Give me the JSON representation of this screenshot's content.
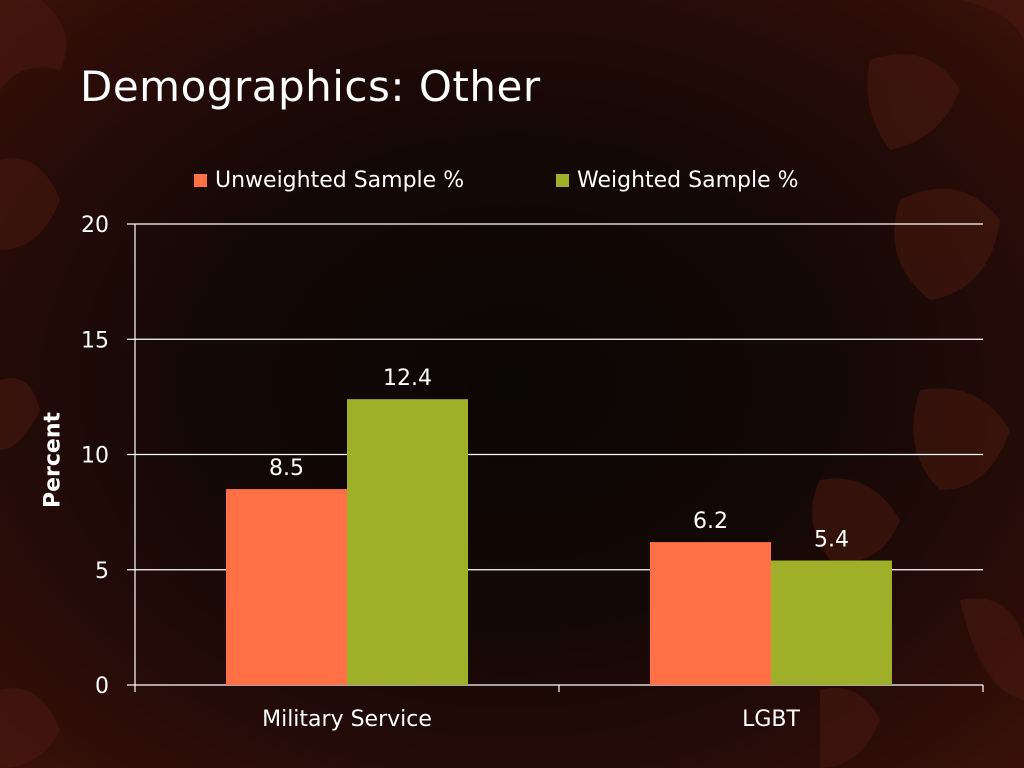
{
  "slide": {
    "title": "Demographics: Other"
  },
  "colors": {
    "unweighted": "#ff7047",
    "weighted": "#9eb02a",
    "gridline": "#ffffff",
    "text": "#ffffff"
  },
  "chart_data": {
    "type": "bar",
    "categories": [
      "Military Service",
      "LGBT"
    ],
    "series": [
      {
        "name": "Unweighted Sample %",
        "values": [
          8.5,
          6.2
        ]
      },
      {
        "name": "Weighted Sample %",
        "values": [
          12.4,
          5.4
        ]
      }
    ],
    "title": "",
    "xlabel": "",
    "ylabel": "Percent",
    "ylim": [
      0,
      20
    ],
    "yticks": [
      0,
      5,
      10,
      15,
      20
    ],
    "grid": true,
    "legend_position": "top",
    "data_labels": true
  }
}
